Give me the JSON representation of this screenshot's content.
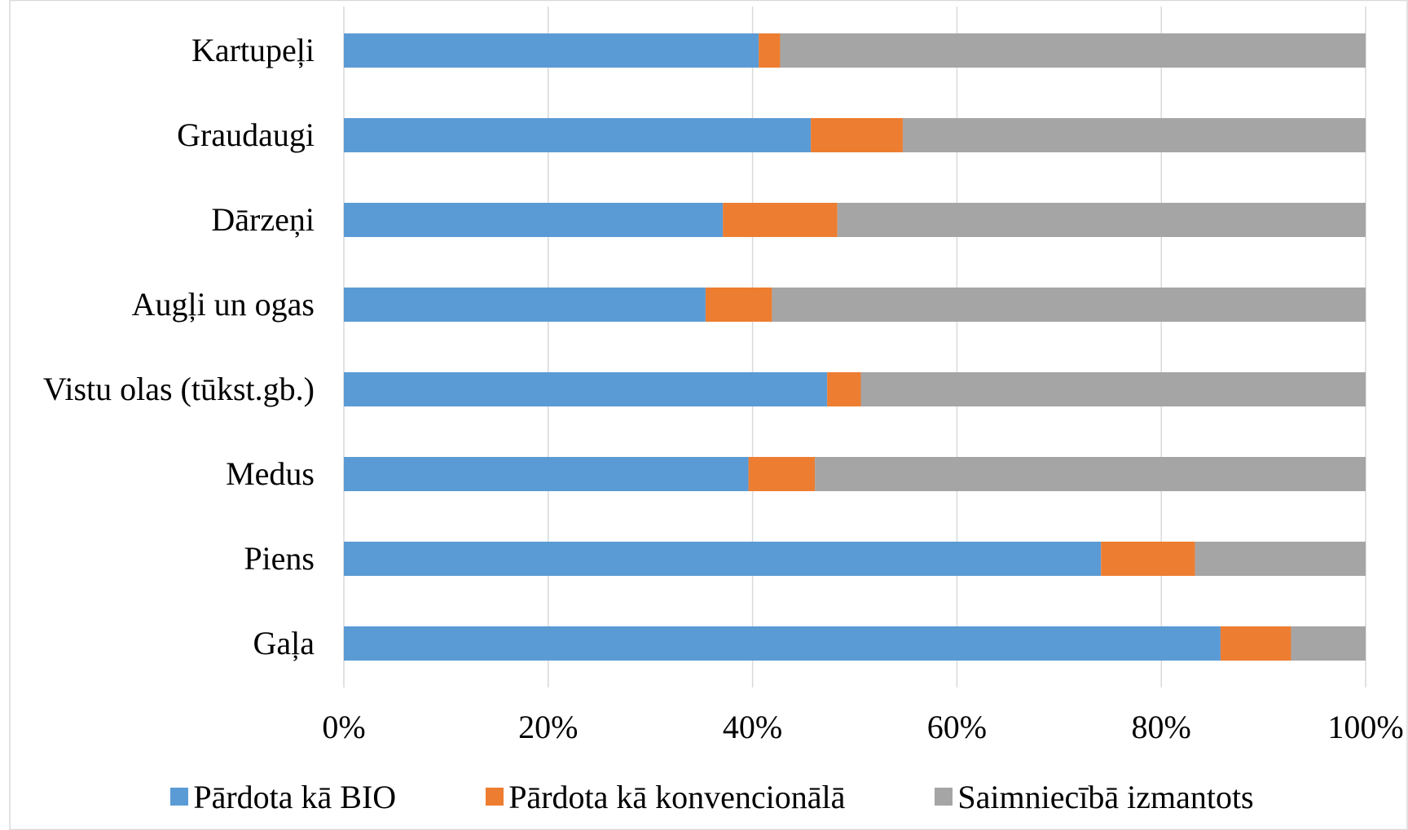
{
  "chart_data": {
    "type": "bar",
    "orientation": "horizontal",
    "stacked": "percent",
    "title": "",
    "xlabel": "",
    "ylabel": "",
    "categories": [
      "Kartupeļi",
      "Graudaugi",
      "Dārzeņi",
      "Augļi un ogas",
      "Vistu olas (tūkst.gb.)",
      "Medus",
      "Piens",
      "Gaļa"
    ],
    "series": [
      {
        "name": "Pārdota kā BIO",
        "color": "#5b9bd5",
        "values": [
          40.6,
          45.7,
          37.1,
          35.4,
          47.3,
          39.6,
          74.1,
          85.8
        ]
      },
      {
        "name": "Pārdota kā konvencionālā",
        "color": "#ed7d31",
        "values": [
          2.1,
          9.0,
          11.2,
          6.5,
          3.3,
          6.5,
          9.2,
          6.9
        ]
      },
      {
        "name": "Saimniecībā izmantots",
        "color": "#a5a5a5",
        "values": [
          57.3,
          45.3,
          51.7,
          58.1,
          49.4,
          53.9,
          16.7,
          7.3
        ]
      }
    ],
    "xlim": [
      0,
      100
    ],
    "x_ticks": [
      "0%",
      "20%",
      "40%",
      "60%",
      "80%",
      "100%"
    ],
    "grid": true,
    "legend_position": "bottom"
  }
}
